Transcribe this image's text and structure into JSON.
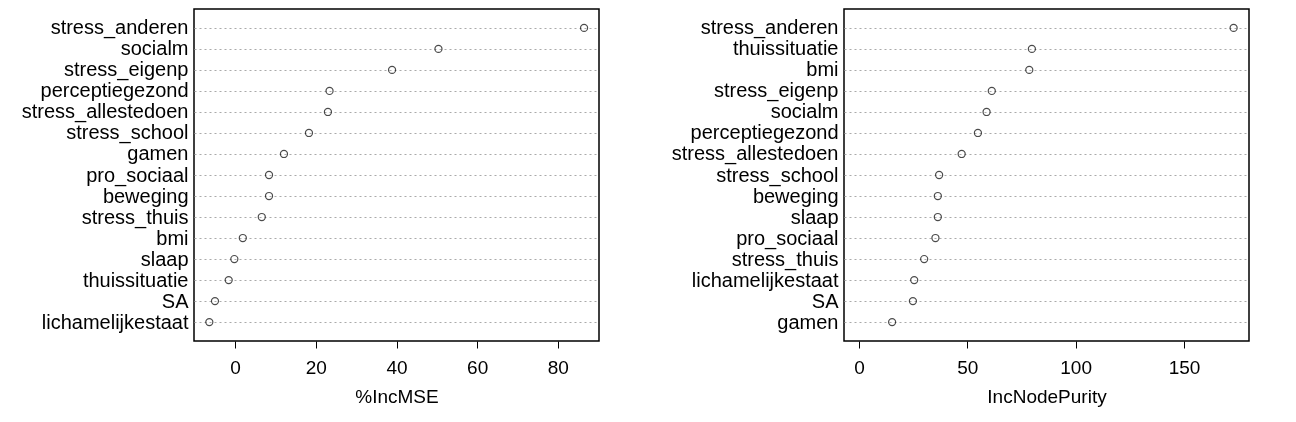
{
  "chart_data": [
    {
      "type": "scatter",
      "orientation": "horizontal",
      "xlabel": "%IncMSE",
      "marker": "circle",
      "grid": "y",
      "categories": [
        "stress_anderen",
        "socialm",
        "stress_eigenp",
        "perceptiegezond",
        "stress_allestedoen",
        "stress_school",
        "gamen",
        "pro_sociaal",
        "beweging",
        "stress_thuis",
        "bmi",
        "slaap",
        "thuissituatie",
        "SA",
        "lichamelijkestaat"
      ],
      "series": [
        {
          "color": "#000000",
          "values": [
            86.5,
            50.4,
            38.9,
            23.4,
            23.0,
            18.3,
            12.1,
            8.4,
            8.4,
            6.6,
            1.9,
            -0.2,
            -1.6,
            -5.0,
            -6.4
          ]
        }
      ],
      "xlim": [
        -10.2,
        90.2
      ],
      "xticks": [
        0,
        20,
        40,
        60,
        80
      ]
    },
    {
      "type": "scatter",
      "orientation": "horizontal",
      "xlabel": "IncNodePurity",
      "marker": "circle",
      "grid": "y",
      "categories": [
        "stress_anderen",
        "thuissituatie",
        "bmi",
        "stress_eigenp",
        "socialm",
        "perceptiegezond",
        "stress_allestedoen",
        "stress_school",
        "beweging",
        "slaap",
        "pro_sociaal",
        "stress_thuis",
        "lichamelijkestaat",
        "SA",
        "gamen"
      ],
      "series": [
        {
          "color": "#000000",
          "values": [
            172.9,
            79.8,
            78.6,
            61.3,
            58.9,
            54.9,
            47.4,
            37.0,
            36.4,
            36.4,
            35.3,
            30.1,
            25.5,
            24.9,
            15.3
          ]
        }
      ],
      "xlim": [
        -6.9,
        180.0
      ],
      "xticks": [
        0,
        50,
        100,
        150
      ]
    }
  ]
}
